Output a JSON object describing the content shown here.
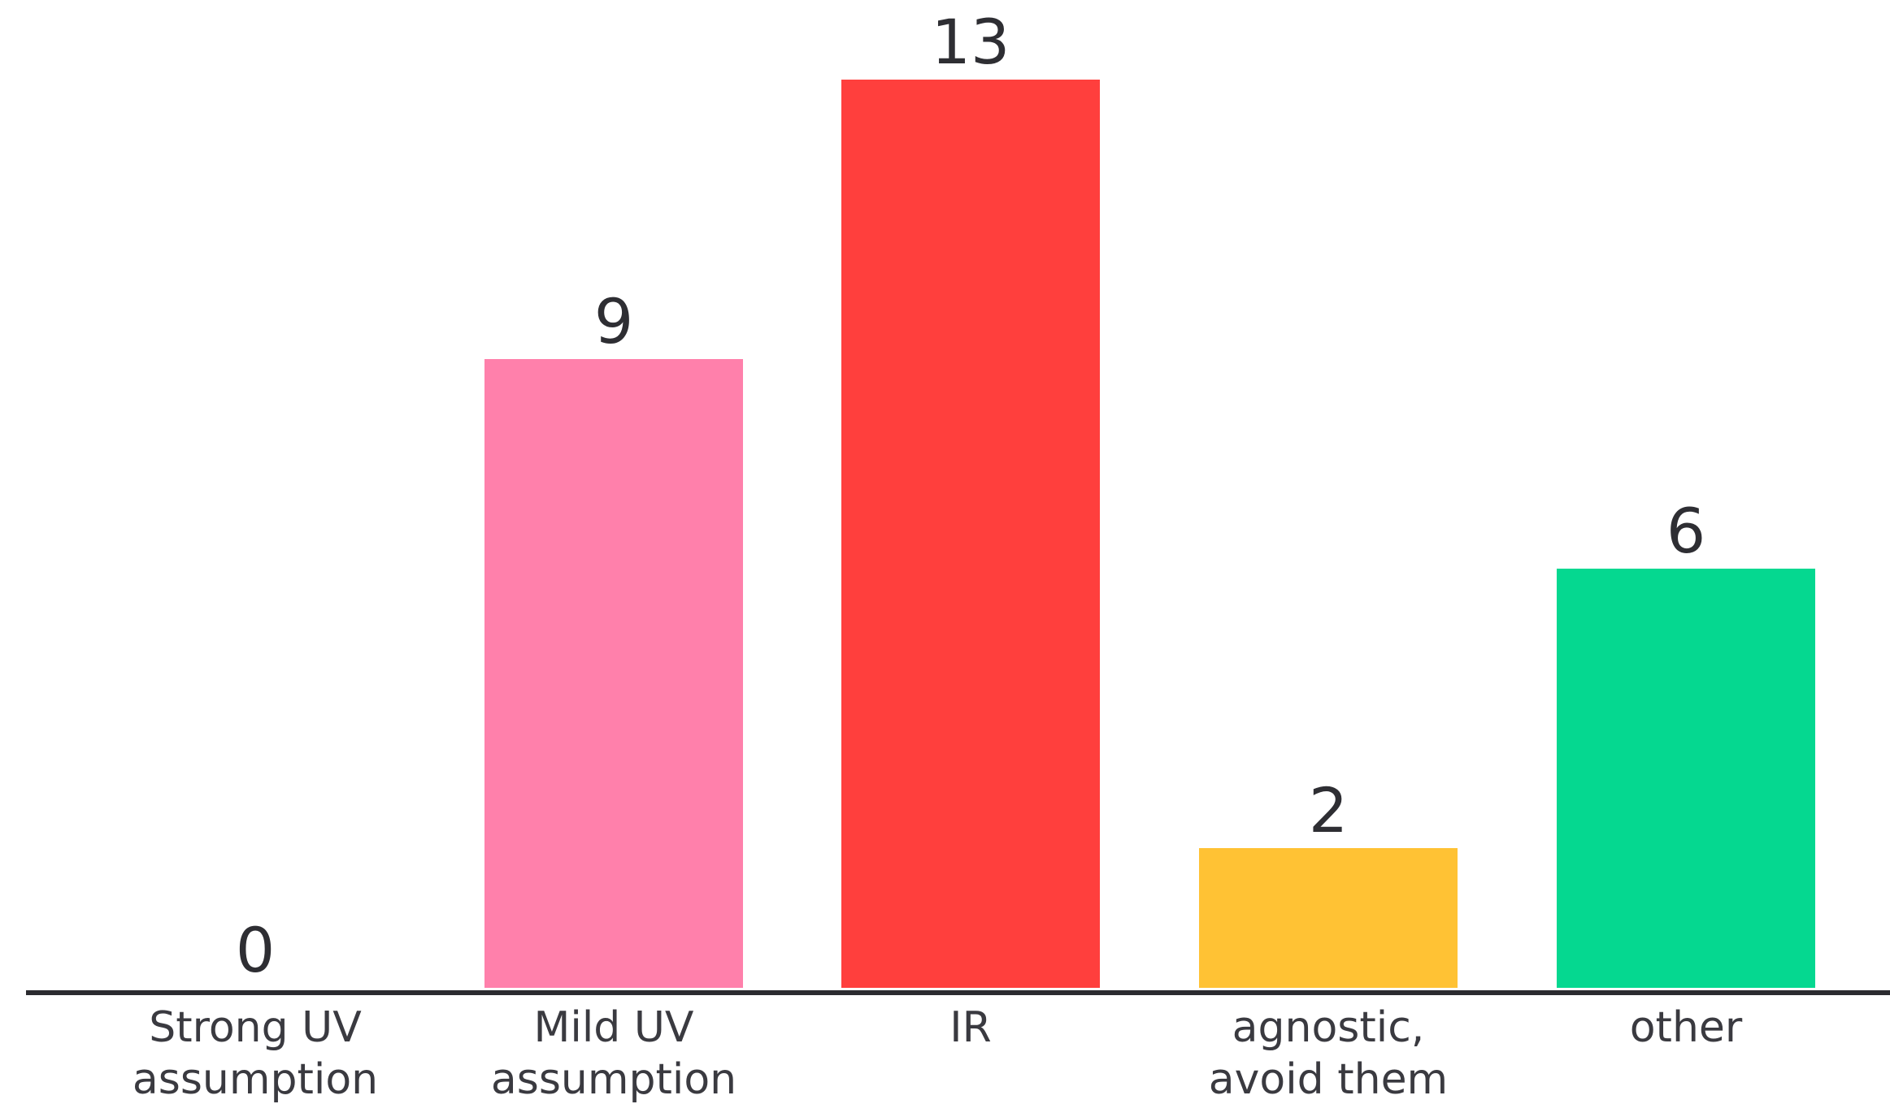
{
  "chart_data": {
    "type": "bar",
    "title": "",
    "xlabel": "",
    "ylabel": "",
    "categories": [
      [
        "Strong UV",
        "assumption"
      ],
      [
        "Mild UV",
        "assumption"
      ],
      [
        "IR"
      ],
      [
        "agnostic,",
        "avoid them"
      ],
      [
        "other"
      ]
    ],
    "values": [
      0,
      9,
      13,
      2,
      6
    ],
    "colors": [
      "#ff80ab",
      "#ff80ab",
      "#ff3f3d",
      "#ffc234",
      "#05d890"
    ],
    "ylim": [
      0,
      13
    ],
    "grid": false,
    "legend": "none"
  }
}
